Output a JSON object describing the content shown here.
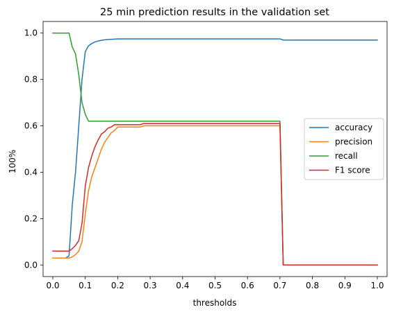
{
  "chart_data": {
    "type": "line",
    "title": "25 min prediction results in the validation set",
    "xlabel": "thresholds",
    "ylabel": "100%",
    "xlim": [
      -0.03,
      1.03
    ],
    "ylim": [
      -0.05,
      1.05
    ],
    "xticks": [
      0.0,
      0.1,
      0.2,
      0.3,
      0.4,
      0.5,
      0.6,
      0.7,
      0.8,
      0.9,
      1.0
    ],
    "xtick_labels": [
      "0.0",
      "0.1",
      "0.2",
      "0.3",
      "0.4",
      "0.5",
      "0.6",
      "0.7",
      "0.8",
      "0.9",
      "1.0"
    ],
    "yticks": [
      0.0,
      0.2,
      0.4,
      0.6,
      0.8,
      1.0
    ],
    "ytick_labels": [
      "0.0",
      "0.2",
      "0.4",
      "0.6",
      "0.8",
      "1.0"
    ],
    "grid": false,
    "legend_position": "center-right",
    "series": [
      {
        "name": "accuracy",
        "color": "#1f77b4",
        "x": [
          0.0,
          0.04,
          0.05,
          0.06,
          0.07,
          0.08,
          0.09,
          0.1,
          0.11,
          0.12,
          0.13,
          0.14,
          0.15,
          0.16,
          0.18,
          0.2,
          0.3,
          0.4,
          0.5,
          0.6,
          0.7,
          0.71,
          0.8,
          0.9,
          1.0
        ],
        "y": [
          0.03,
          0.03,
          0.04,
          0.26,
          0.4,
          0.6,
          0.8,
          0.92,
          0.945,
          0.955,
          0.962,
          0.966,
          0.969,
          0.971,
          0.973,
          0.975,
          0.975,
          0.975,
          0.975,
          0.975,
          0.975,
          0.97,
          0.97,
          0.97,
          0.97
        ]
      },
      {
        "name": "precision",
        "color": "#ff7f0e",
        "x": [
          0.0,
          0.05,
          0.06,
          0.07,
          0.08,
          0.09,
          0.1,
          0.11,
          0.12,
          0.13,
          0.14,
          0.15,
          0.16,
          0.17,
          0.18,
          0.19,
          0.2,
          0.25,
          0.27,
          0.28,
          0.4,
          0.5,
          0.6,
          0.7,
          0.71,
          0.8,
          0.9,
          1.0
        ],
        "y": [
          0.03,
          0.03,
          0.035,
          0.045,
          0.06,
          0.1,
          0.22,
          0.32,
          0.38,
          0.42,
          0.46,
          0.5,
          0.53,
          0.55,
          0.57,
          0.58,
          0.595,
          0.595,
          0.595,
          0.6,
          0.6,
          0.6,
          0.6,
          0.6,
          0.0,
          0.0,
          0.0,
          0.0
        ]
      },
      {
        "name": "recall",
        "color": "#2ca02c",
        "x": [
          0.0,
          0.05,
          0.06,
          0.07,
          0.08,
          0.09,
          0.1,
          0.11,
          0.12,
          0.2,
          0.3,
          0.4,
          0.5,
          0.6,
          0.7,
          0.71,
          0.8,
          0.9,
          1.0
        ],
        "y": [
          1.0,
          1.0,
          0.94,
          0.91,
          0.82,
          0.7,
          0.65,
          0.62,
          0.62,
          0.62,
          0.62,
          0.62,
          0.62,
          0.62,
          0.62,
          0.0,
          0.0,
          0.0,
          0.0
        ]
      },
      {
        "name": "F1 score",
        "color": "#d62728",
        "x": [
          0.0,
          0.05,
          0.06,
          0.07,
          0.08,
          0.09,
          0.1,
          0.11,
          0.12,
          0.13,
          0.14,
          0.15,
          0.16,
          0.17,
          0.18,
          0.19,
          0.2,
          0.25,
          0.27,
          0.28,
          0.4,
          0.5,
          0.6,
          0.7,
          0.71,
          0.8,
          0.9,
          1.0
        ],
        "y": [
          0.06,
          0.06,
          0.07,
          0.085,
          0.105,
          0.18,
          0.34,
          0.42,
          0.47,
          0.51,
          0.54,
          0.565,
          0.575,
          0.59,
          0.595,
          0.605,
          0.605,
          0.605,
          0.605,
          0.61,
          0.61,
          0.61,
          0.61,
          0.61,
          0.0,
          0.0,
          0.0,
          0.0
        ]
      }
    ]
  }
}
